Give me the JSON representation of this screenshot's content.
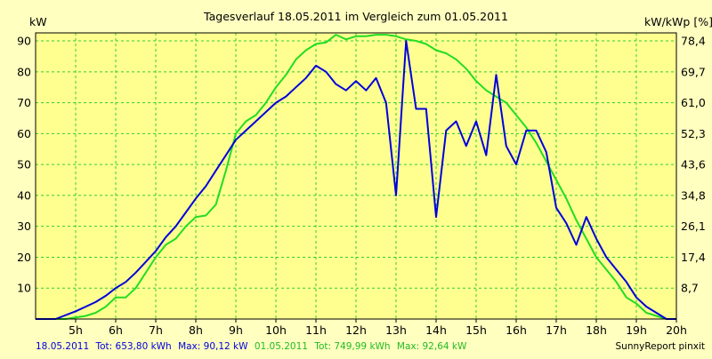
{
  "chart_data": {
    "type": "line",
    "title": "Tagesverlauf 18.05.2011 im Vergleich zum 01.05.2011",
    "ylabel_left": "kW",
    "ylabel_right": "kW/kWp [%]",
    "xlim": [
      4.0,
      20.0
    ],
    "ylim": [
      0,
      92.6
    ],
    "y_ticks_left": [
      10,
      20,
      30,
      40,
      50,
      60,
      70,
      80,
      90
    ],
    "y_ticks_right": [
      {
        "v": 10.0,
        "label": "8,7"
      },
      {
        "v": 20.0,
        "label": "17,4"
      },
      {
        "v": 30.0,
        "label": "26,1"
      },
      {
        "v": 40.0,
        "label": "34,8"
      },
      {
        "v": 50.0,
        "label": "43,6"
      },
      {
        "v": 60.0,
        "label": "52,3"
      },
      {
        "v": 70.0,
        "label": "61,0"
      },
      {
        "v": 80.0,
        "label": "69,7"
      },
      {
        "v": 90.0,
        "label": "78,4"
      }
    ],
    "x_ticks": [
      {
        "v": 5,
        "label": "5h"
      },
      {
        "v": 6,
        "label": "6h"
      },
      {
        "v": 7,
        "label": "7h"
      },
      {
        "v": 8,
        "label": "8h"
      },
      {
        "v": 9,
        "label": "9h"
      },
      {
        "v": 10,
        "label": "10h"
      },
      {
        "v": 11,
        "label": "11h"
      },
      {
        "v": 12,
        "label": "12h"
      },
      {
        "v": 13,
        "label": "13h"
      },
      {
        "v": 14,
        "label": "14h"
      },
      {
        "v": 15,
        "label": "15h"
      },
      {
        "v": 16,
        "label": "16h"
      },
      {
        "v": 17,
        "label": "17h"
      },
      {
        "v": 18,
        "label": "18h"
      },
      {
        "v": 19,
        "label": "19h"
      },
      {
        "v": 20,
        "label": "20h"
      }
    ],
    "grid": true,
    "series": [
      {
        "name": "01.05.2011",
        "color": "#22dd22",
        "x": [
          4.0,
          4.75,
          5.0,
          5.25,
          5.5,
          5.75,
          6.0,
          6.25,
          6.5,
          6.75,
          7.0,
          7.25,
          7.5,
          7.75,
          8.0,
          8.25,
          8.5,
          8.75,
          9.0,
          9.25,
          9.5,
          9.75,
          10.0,
          10.25,
          10.5,
          10.75,
          11.0,
          11.25,
          11.5,
          11.75,
          12.0,
          12.25,
          12.5,
          12.75,
          13.0,
          13.25,
          13.5,
          13.75,
          14.0,
          14.25,
          14.5,
          14.75,
          15.0,
          15.25,
          15.5,
          15.75,
          16.0,
          16.25,
          16.5,
          16.75,
          17.0,
          17.25,
          17.5,
          17.75,
          18.0,
          18.25,
          18.5,
          18.75,
          19.0,
          19.25,
          19.5,
          19.75,
          20.0
        ],
        "y": [
          0,
          0,
          0.5,
          1,
          2,
          4,
          7,
          7,
          10,
          15,
          20,
          24,
          26,
          30,
          33,
          33.5,
          37,
          48,
          60,
          64,
          66,
          70,
          75,
          79,
          84,
          87,
          89,
          89.5,
          92,
          90.5,
          91.5,
          91.5,
          92,
          92,
          91.5,
          90.5,
          90,
          89,
          87,
          86,
          84,
          81,
          77,
          74,
          72,
          70,
          66,
          62,
          57,
          51,
          45,
          39,
          32,
          26,
          20,
          16,
          12,
          7,
          5,
          2,
          1,
          0,
          0
        ]
      },
      {
        "name": "18.05.2011",
        "color": "#0000dd",
        "x": [
          4.0,
          4.5,
          5.0,
          5.25,
          5.5,
          5.75,
          6.0,
          6.25,
          6.5,
          6.75,
          7.0,
          7.25,
          7.5,
          7.75,
          8.0,
          8.25,
          8.5,
          8.75,
          9.0,
          9.25,
          9.5,
          9.75,
          10.0,
          10.25,
          10.5,
          10.75,
          11.0,
          11.25,
          11.5,
          11.75,
          12.0,
          12.25,
          12.5,
          12.75,
          13.0,
          13.25,
          13.5,
          13.75,
          14.0,
          14.25,
          14.5,
          14.75,
          15.0,
          15.25,
          15.5,
          15.75,
          16.0,
          16.25,
          16.5,
          16.75,
          17.0,
          17.25,
          17.5,
          17.75,
          18.0,
          18.25,
          18.5,
          18.75,
          19.0,
          19.25,
          19.5,
          19.75,
          20.0
        ],
        "y": [
          0,
          0,
          2.5,
          4,
          5.5,
          7.5,
          10,
          12,
          15,
          18.5,
          22,
          26.5,
          30,
          34.5,
          39,
          43,
          48,
          53,
          58,
          61,
          64,
          67,
          70,
          72,
          75,
          78,
          82,
          80,
          76,
          74,
          77,
          74,
          78,
          70,
          40,
          90,
          68,
          68,
          33,
          61,
          64,
          56,
          64,
          53,
          79,
          56,
          50,
          61,
          61,
          54,
          36,
          31,
          24,
          33,
          26,
          20,
          16,
          12,
          7,
          4,
          2,
          0,
          0
        ]
      }
    ],
    "footer": {
      "s1_date": "18.05.2011",
      "s1_tot": "Tot: 653,80 kWh",
      "s1_max": "Max: 90,12 kW",
      "s2_date": "01.05.2011",
      "s2_tot": "Tot: 749,99 kWh",
      "s2_max": "Max: 92,64 kW",
      "credit": "SunnyReport pinxit"
    },
    "colors": {
      "background": "#ffffc0",
      "plot_bg": "#ffff90",
      "grid": "#33cc33"
    }
  }
}
